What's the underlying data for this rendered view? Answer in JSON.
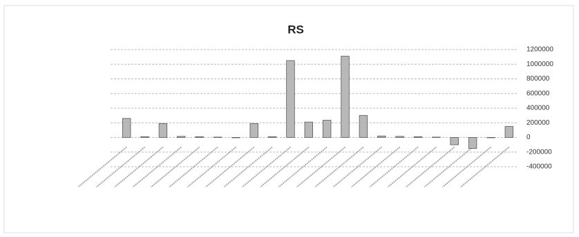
{
  "chart_data": {
    "type": "bar",
    "title": "RS",
    "categories": [
      null,
      null,
      null,
      null,
      null,
      null,
      null,
      null,
      null,
      null,
      null,
      null,
      null,
      null,
      null,
      null,
      null,
      null,
      null,
      null,
      null,
      null
    ],
    "values": [
      260000,
      10000,
      190000,
      15000,
      10000,
      5000,
      0,
      190000,
      10000,
      1050000,
      210000,
      235000,
      1110000,
      300000,
      20000,
      15000,
      10000,
      5000,
      -100000,
      -150000,
      0,
      150000
    ],
    "color": "#b8b8b8",
    "ylim": [
      -400000,
      1200000
    ],
    "yticks": [
      -400000,
      -200000,
      0,
      200000,
      400000,
      600000,
      800000,
      1000000,
      1200000
    ],
    "grid": true
  }
}
